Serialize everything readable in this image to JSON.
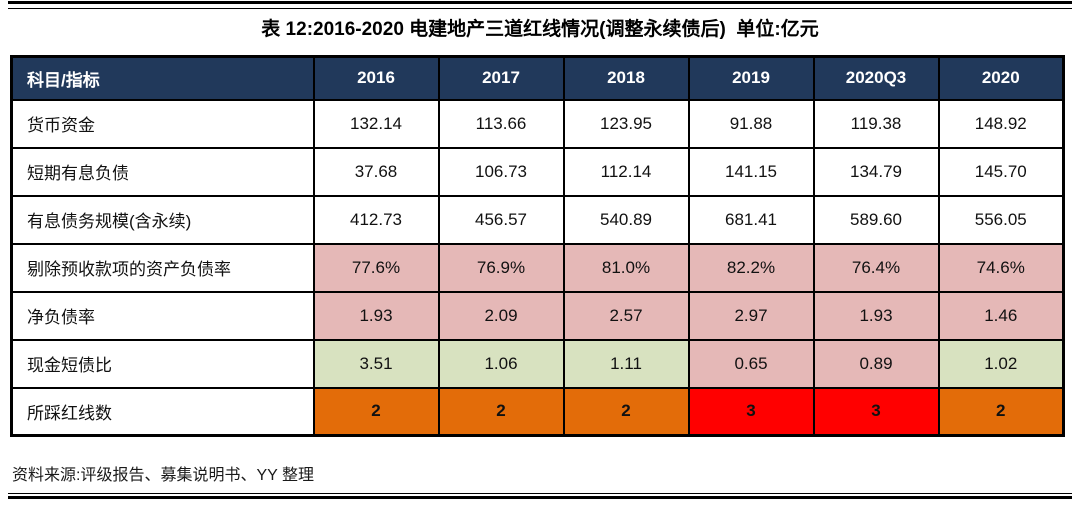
{
  "title": "表 12:2016-2020 电建地产三道红线情况(调整永续债后)  单位:亿元",
  "source": "资料来源:评级报告、募集说明书、YY 整理",
  "colors": {
    "header_bg": "#21395B",
    "header_text": "#FFFFFF",
    "border": "#000000",
    "cell_bg": {
      "w": "#FFFFFF",
      "p": "#E5B8B7",
      "g": "#D8E2C0",
      "o": "#E36C09",
      "r": "#FF0000"
    }
  },
  "table": {
    "columns": [
      "科目/指标",
      "2016",
      "2017",
      "2018",
      "2019",
      "2020Q3",
      "2020"
    ],
    "rows": [
      {
        "label": "货币资金",
        "values": [
          "132.14",
          "113.66",
          "123.95",
          "91.88",
          "119.38",
          "148.92"
        ],
        "bg": [
          "w",
          "w",
          "w",
          "w",
          "w",
          "w"
        ],
        "bold": false
      },
      {
        "label": "短期有息负债",
        "values": [
          "37.68",
          "106.73",
          "112.14",
          "141.15",
          "134.79",
          "145.70"
        ],
        "bg": [
          "w",
          "w",
          "w",
          "w",
          "w",
          "w"
        ],
        "bold": false
      },
      {
        "label": "有息债务规模(含永续)",
        "values": [
          "412.73",
          "456.57",
          "540.89",
          "681.41",
          "589.60",
          "556.05"
        ],
        "bg": [
          "w",
          "w",
          "w",
          "w",
          "w",
          "w"
        ],
        "bold": false
      },
      {
        "label": "剔除预收款项的资产负债率",
        "values": [
          "77.6%",
          "76.9%",
          "81.0%",
          "82.2%",
          "76.4%",
          "74.6%"
        ],
        "bg": [
          "p",
          "p",
          "p",
          "p",
          "p",
          "p"
        ],
        "bold": false
      },
      {
        "label": "净负债率",
        "values": [
          "1.93",
          "2.09",
          "2.57",
          "2.97",
          "1.93",
          "1.46"
        ],
        "bg": [
          "p",
          "p",
          "p",
          "p",
          "p",
          "p"
        ],
        "bold": false
      },
      {
        "label": "现金短债比",
        "values": [
          "3.51",
          "1.06",
          "1.11",
          "0.65",
          "0.89",
          "1.02"
        ],
        "bg": [
          "g",
          "g",
          "g",
          "p",
          "p",
          "g"
        ],
        "bold": false
      },
      {
        "label": "所踩红线数",
        "values": [
          "2",
          "2",
          "2",
          "3",
          "3",
          "2"
        ],
        "bg": [
          "o",
          "o",
          "o",
          "r",
          "r",
          "o"
        ],
        "bold": true
      }
    ]
  }
}
